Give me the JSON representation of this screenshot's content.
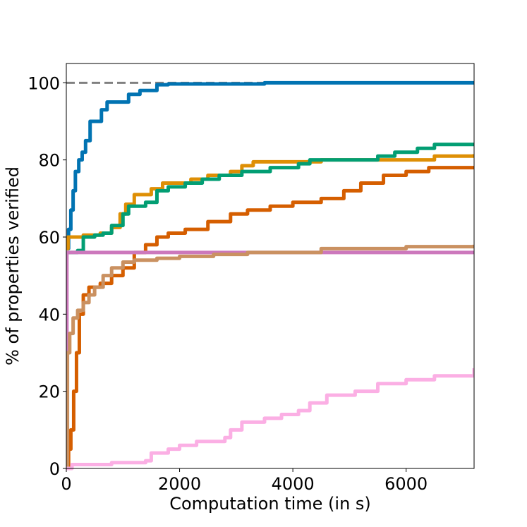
{
  "chart_data": {
    "type": "line",
    "title": "",
    "xlabel": "Computation time (in s)",
    "ylabel": "% of properties verified",
    "xlim": [
      0,
      7200
    ],
    "ylim": [
      0,
      105
    ],
    "x_ticks": [
      0,
      2000,
      4000,
      6000
    ],
    "y_ticks": [
      0,
      20,
      40,
      60,
      80,
      100
    ],
    "x_tick_labels": [
      "0",
      "2000",
      "4000",
      "6000"
    ],
    "y_tick_labels": [
      "0",
      "20",
      "40",
      "60",
      "80",
      "100"
    ],
    "grid": false,
    "legend": "none",
    "reference_line": {
      "y": 100,
      "color": "#808080",
      "style": "dashed"
    },
    "series": [
      {
        "color": "#0173b2",
        "points": [
          [
            0,
            57
          ],
          [
            40,
            62
          ],
          [
            80,
            67
          ],
          [
            120,
            72
          ],
          [
            160,
            77
          ],
          [
            220,
            80
          ],
          [
            280,
            82
          ],
          [
            340,
            85
          ],
          [
            420,
            90
          ],
          [
            560,
            90
          ],
          [
            620,
            93
          ],
          [
            720,
            95
          ],
          [
            1000,
            95
          ],
          [
            1100,
            97
          ],
          [
            1300,
            98
          ],
          [
            1600,
            99.5
          ],
          [
            1800,
            99.7
          ],
          [
            3500,
            100
          ],
          [
            7200,
            100
          ]
        ]
      },
      {
        "color": "#de8f05",
        "points": [
          [
            0,
            57
          ],
          [
            30,
            60
          ],
          [
            300,
            60.5
          ],
          [
            600,
            61
          ],
          [
            800,
            62.5
          ],
          [
            950,
            66
          ],
          [
            1050,
            68.5
          ],
          [
            1200,
            71
          ],
          [
            1500,
            72.5
          ],
          [
            1700,
            74
          ],
          [
            2000,
            74
          ],
          [
            2200,
            75
          ],
          [
            2500,
            76
          ],
          [
            2900,
            77
          ],
          [
            3100,
            78.5
          ],
          [
            3300,
            79.5
          ],
          [
            4000,
            79.5
          ],
          [
            4500,
            80
          ],
          [
            6000,
            80
          ],
          [
            6500,
            81
          ],
          [
            7200,
            81.5
          ]
        ]
      },
      {
        "color": "#029e73",
        "points": [
          [
            0,
            56
          ],
          [
            200,
            56.5
          ],
          [
            300,
            60
          ],
          [
            500,
            60.5
          ],
          [
            650,
            61
          ],
          [
            800,
            63
          ],
          [
            1000,
            66
          ],
          [
            1100,
            68
          ],
          [
            1400,
            69
          ],
          [
            1600,
            72
          ],
          [
            1800,
            73
          ],
          [
            2100,
            74
          ],
          [
            2400,
            75
          ],
          [
            2700,
            76
          ],
          [
            3100,
            77
          ],
          [
            3600,
            78
          ],
          [
            4100,
            79
          ],
          [
            4300,
            80
          ],
          [
            5000,
            80
          ],
          [
            5500,
            81
          ],
          [
            5800,
            82
          ],
          [
            6200,
            83
          ],
          [
            6500,
            84
          ],
          [
            7200,
            84
          ]
        ]
      },
      {
        "color": "#d55e00",
        "points": [
          [
            0,
            0
          ],
          [
            40,
            5
          ],
          [
            80,
            10
          ],
          [
            130,
            20
          ],
          [
            180,
            30
          ],
          [
            230,
            40
          ],
          [
            300,
            45
          ],
          [
            400,
            47
          ],
          [
            600,
            48
          ],
          [
            800,
            50
          ],
          [
            1000,
            52
          ],
          [
            1200,
            56
          ],
          [
            1400,
            58
          ],
          [
            1600,
            60
          ],
          [
            1800,
            61
          ],
          [
            2100,
            62
          ],
          [
            2500,
            64
          ],
          [
            2900,
            66
          ],
          [
            3200,
            67
          ],
          [
            3600,
            68
          ],
          [
            4000,
            69
          ],
          [
            4500,
            70
          ],
          [
            4900,
            72
          ],
          [
            5200,
            74
          ],
          [
            5600,
            76
          ],
          [
            6000,
            77
          ],
          [
            6400,
            78
          ],
          [
            7200,
            78
          ]
        ]
      },
      {
        "color": "#cc78bc",
        "points": [
          [
            0,
            0
          ],
          [
            10,
            56
          ],
          [
            7200,
            56
          ]
        ]
      },
      {
        "color": "#ca9161",
        "points": [
          [
            0,
            0
          ],
          [
            20,
            30
          ],
          [
            60,
            35
          ],
          [
            120,
            39
          ],
          [
            200,
            41
          ],
          [
            300,
            43
          ],
          [
            400,
            45
          ],
          [
            500,
            47
          ],
          [
            650,
            50
          ],
          [
            800,
            52
          ],
          [
            1000,
            53.5
          ],
          [
            1200,
            54
          ],
          [
            1600,
            54.5
          ],
          [
            2000,
            55
          ],
          [
            2600,
            55.5
          ],
          [
            3200,
            56
          ],
          [
            4500,
            57
          ],
          [
            6000,
            57.5
          ],
          [
            7200,
            58
          ]
        ]
      },
      {
        "color": "#fbafe4",
        "points": [
          [
            0,
            0
          ],
          [
            100,
            1
          ],
          [
            800,
            1.5
          ],
          [
            1400,
            2
          ],
          [
            1500,
            4
          ],
          [
            1800,
            5
          ],
          [
            2000,
            6
          ],
          [
            2300,
            7
          ],
          [
            2800,
            8
          ],
          [
            2900,
            10
          ],
          [
            3100,
            12
          ],
          [
            3500,
            13
          ],
          [
            3800,
            14
          ],
          [
            4100,
            15
          ],
          [
            4300,
            17
          ],
          [
            4600,
            19
          ],
          [
            5100,
            20
          ],
          [
            5500,
            22
          ],
          [
            6000,
            23
          ],
          [
            6500,
            24
          ],
          [
            7200,
            26
          ]
        ]
      }
    ]
  }
}
